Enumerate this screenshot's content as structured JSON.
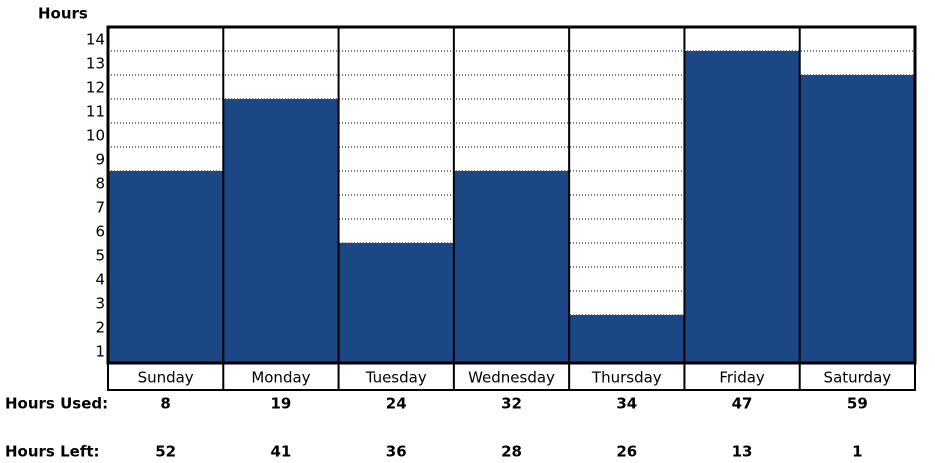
{
  "chart_data": {
    "type": "bar",
    "y_label": "Hours",
    "categories": [
      "Sunday",
      "Monday",
      "Tuesday",
      "Wednesday",
      "Thursday",
      "Friday",
      "Saturday"
    ],
    "values": [
      8,
      11,
      5,
      8,
      2,
      13,
      12
    ],
    "color": "#1b4785",
    "ylim": [
      0,
      14
    ],
    "yticks": [
      1,
      2,
      3,
      4,
      5,
      6,
      7,
      8,
      9,
      10,
      11,
      12,
      13,
      14
    ],
    "grid": true
  },
  "table": {
    "rows": [
      {
        "label": "Hours Used:",
        "values": [
          8,
          19,
          24,
          32,
          34,
          47,
          59
        ]
      },
      {
        "label": "Hours Left:",
        "values": [
          52,
          41,
          36,
          28,
          26,
          13,
          1
        ]
      }
    ]
  }
}
